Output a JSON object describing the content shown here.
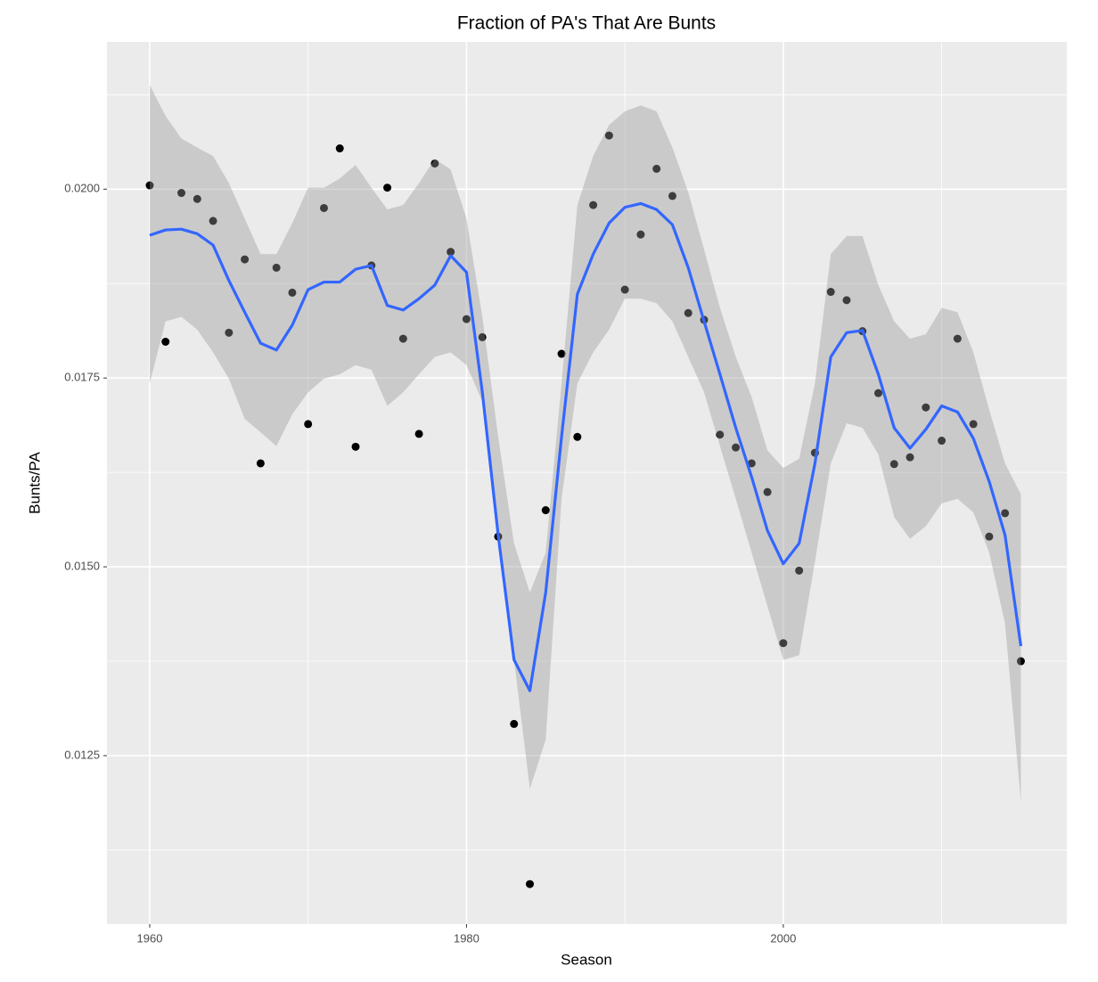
{
  "chart_data": {
    "type": "scatter-smooth",
    "title": "Fraction of PA's That Are Bunts",
    "x_label": "Season",
    "y_label": "Bunts/PA",
    "xlim": [
      1957.3,
      2017.9
    ],
    "xticks": [
      1960,
      1980,
      2000
    ],
    "ylim": [
      0.01027,
      0.02195
    ],
    "yticks": [
      {
        "value": 0.0125,
        "label": "0.0125"
      },
      {
        "value": 0.015,
        "label": "0.0150"
      },
      {
        "value": 0.0175,
        "label": "0.0175"
      },
      {
        "value": 0.02,
        "label": "0.0200"
      }
    ],
    "grid": true,
    "point_color": "#000000",
    "x": [
      1960,
      1961,
      1962,
      1963,
      1964,
      1965,
      1966,
      1967,
      1968,
      1969,
      1970,
      1971,
      1972,
      1973,
      1974,
      1975,
      1976,
      1977,
      1978,
      1979,
      1980,
      1981,
      1982,
      1983,
      1984,
      1985,
      1986,
      1987,
      1988,
      1989,
      1990,
      1991,
      1992,
      1993,
      1994,
      1995,
      1996,
      1997,
      1998,
      1999,
      2000,
      2001,
      2002,
      2003,
      2004,
      2005,
      2006,
      2007,
      2008,
      2009,
      2010,
      2011,
      2012,
      2013,
      2014,
      2015
    ],
    "points": [
      0.02005,
      0.01798,
      0.01995,
      0.01987,
      0.01958,
      0.0181,
      0.01907,
      0.01637,
      0.01896,
      0.01863,
      0.01689,
      0.01975,
      0.02054,
      0.01659,
      0.01899,
      0.02002,
      0.01802,
      0.01676,
      0.02034,
      0.01917,
      0.01828,
      0.01804,
      0.0154,
      0.01292,
      0.0108,
      0.01575,
      0.01782,
      0.01672,
      0.01979,
      0.02071,
      0.01867,
      0.0194,
      0.02027,
      0.01991,
      0.01836,
      0.01827,
      0.01675,
      0.01658,
      0.01637,
      0.01599,
      0.01399,
      0.01495,
      0.01651,
      0.01864,
      0.01853,
      0.01812,
      0.0173,
      0.01636,
      0.01645,
      0.01711,
      0.01667,
      0.01802,
      0.01689,
      0.0154,
      0.01571,
      0.01375
    ],
    "smooth": {
      "color": "#3366ff",
      "band_color": "#999999",
      "values": [
        0.01939,
        0.01946,
        0.01947,
        0.01941,
        0.01926,
        0.01879,
        0.01837,
        0.01796,
        0.01787,
        0.0182,
        0.01867,
        0.01877,
        0.01877,
        0.01894,
        0.01899,
        0.01846,
        0.0184,
        0.01855,
        0.01873,
        0.01912,
        0.0189,
        0.01731,
        0.01542,
        0.01377,
        0.01336,
        0.01466,
        0.01672,
        0.01861,
        0.01914,
        0.01955,
        0.01976,
        0.01981,
        0.01973,
        0.01953,
        0.01896,
        0.01825,
        0.01755,
        0.01684,
        0.01619,
        0.01548,
        0.01504,
        0.01531,
        0.01637,
        0.01778,
        0.0181,
        0.01813,
        0.01755,
        0.01684,
        0.01657,
        0.01682,
        0.01713,
        0.01705,
        0.0167,
        0.01613,
        0.01542,
        0.01395
      ],
      "upper": [
        0.02138,
        0.02097,
        0.02067,
        0.02055,
        0.02044,
        0.02008,
        0.01961,
        0.01914,
        0.01914,
        0.01955,
        0.02002,
        0.02002,
        0.02014,
        0.02032,
        0.02002,
        0.01973,
        0.01979,
        0.02008,
        0.0204,
        0.02026,
        0.01961,
        0.01831,
        0.01672,
        0.01531,
        0.01466,
        0.01519,
        0.01743,
        0.01979,
        0.02044,
        0.02085,
        0.02103,
        0.02111,
        0.02103,
        0.02055,
        0.01996,
        0.0192,
        0.01843,
        0.01778,
        0.01725,
        0.01654,
        0.01631,
        0.01643,
        0.01743,
        0.01914,
        0.01938,
        0.01938,
        0.01873,
        0.01825,
        0.01802,
        0.01808,
        0.01843,
        0.01837,
        0.01784,
        0.01708,
        0.01637,
        0.01596
      ],
      "lower": [
        0.01743,
        0.01825,
        0.01831,
        0.01814,
        0.01784,
        0.01749,
        0.01696,
        0.01678,
        0.0166,
        0.01702,
        0.01731,
        0.01749,
        0.01755,
        0.01767,
        0.01761,
        0.01713,
        0.01731,
        0.01755,
        0.01778,
        0.01784,
        0.01767,
        0.01719,
        0.01542,
        0.01377,
        0.01206,
        0.01271,
        0.0159,
        0.01743,
        0.01784,
        0.01814,
        0.01855,
        0.01855,
        0.01849,
        0.01825,
        0.01778,
        0.01731,
        0.0166,
        0.0159,
        0.01519,
        0.01448,
        0.01377,
        0.01383,
        0.01507,
        0.01637,
        0.0169,
        0.01684,
        0.01649,
        0.01566,
        0.01537,
        0.01554,
        0.01584,
        0.0159,
        0.01572,
        0.01519,
        0.01425,
        0.01189
      ]
    }
  }
}
